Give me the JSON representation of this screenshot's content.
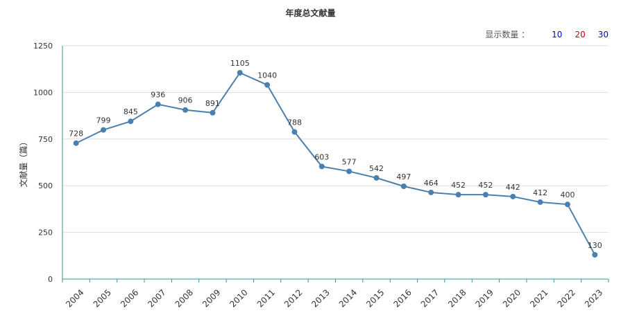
{
  "title": "年度总文献量",
  "count_selector": {
    "label": "显示数量 ：",
    "options": [
      {
        "label": "10",
        "color": "#0000cc"
      },
      {
        "label": "20",
        "color": "#cc0000"
      },
      {
        "label": "30",
        "color": "#0000cc"
      }
    ]
  },
  "chart_data": {
    "type": "line",
    "title": "年度总文献量",
    "xlabel": "",
    "ylabel": "文献量（篇）",
    "categories": [
      "2004",
      "2005",
      "2006",
      "2007",
      "2008",
      "2009",
      "2010",
      "2011",
      "2012",
      "2013",
      "2014",
      "2015",
      "2016",
      "2017",
      "2018",
      "2019",
      "2020",
      "2021",
      "2022",
      "2023"
    ],
    "series": [
      {
        "values": [
          728,
          799,
          845,
          936,
          906,
          891,
          1105,
          1040,
          788,
          603,
          577,
          542,
          497,
          464,
          452,
          452,
          442,
          412,
          400,
          130
        ]
      }
    ],
    "ylim": [
      0,
      1250
    ],
    "yticks": [
      0,
      250,
      500,
      750,
      1000,
      1250
    ],
    "grid": true,
    "line_color": "#4a7fae",
    "axis_color": "#2a9a9a"
  }
}
